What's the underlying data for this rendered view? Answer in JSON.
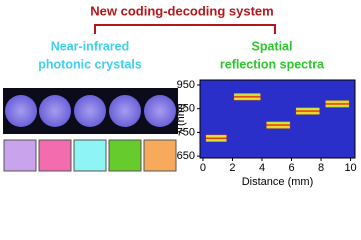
{
  "header": {
    "title": "New coding-decoding system"
  },
  "left_panel": {
    "title_lines": [
      "Near-infrared",
      "photonic crystals"
    ]
  },
  "right_panel": {
    "title_lines": [
      "Spatial",
      "reflection spectra"
    ]
  },
  "chart_data": {
    "type": "spectra",
    "x_label": "Distance (mm)",
    "y_label": "λ (nm)",
    "x_start": [
      0.2,
      2.1,
      4.3,
      6.3,
      8.3
    ],
    "x_end": [
      1.6,
      3.9,
      5.9,
      7.9,
      9.9
    ],
    "values": [
      725,
      900,
      781,
      840,
      870
    ],
    "color": "#d81c1c",
    "background": "#2b2fc9",
    "xlim": [
      -0.2,
      10.3
    ],
    "xticks": [
      0,
      2,
      4,
      6,
      8,
      10
    ],
    "ylim": [
      642,
      971
    ],
    "yticks": [
      650,
      750,
      850,
      950
    ]
  }
}
